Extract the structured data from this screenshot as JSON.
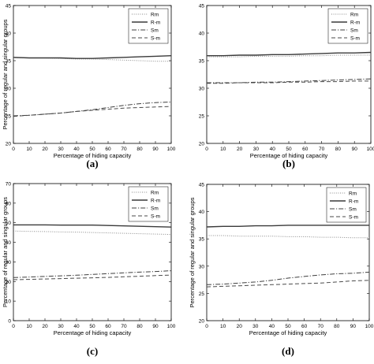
{
  "chart_data": [
    {
      "type": "line",
      "panel_label": "(a)",
      "xlabel": "Percentage of hiding capacity",
      "ylabel": "Percentage of regular and singular groups",
      "xlim": [
        0,
        100
      ],
      "ylim": [
        20,
        45
      ],
      "xticks": [
        "0",
        "10",
        "20",
        "30",
        "40",
        "50",
        "60",
        "70",
        "80",
        "90",
        "100"
      ],
      "yticks": [
        "20",
        "25",
        "30",
        "35",
        "40",
        "45"
      ],
      "legend": "top-right",
      "x": [
        0,
        10,
        20,
        30,
        40,
        50,
        60,
        70,
        80,
        90,
        100
      ],
      "series": [
        {
          "name": "Rm",
          "style": "dotted",
          "values": [
            35.5,
            35.5,
            35.5,
            35.4,
            35.3,
            35.3,
            35.2,
            35.1,
            35.0,
            34.9,
            34.9
          ]
        },
        {
          "name": "R-m",
          "style": "solid",
          "values": [
            35.6,
            35.5,
            35.5,
            35.5,
            35.4,
            35.4,
            35.5,
            35.6,
            35.7,
            35.8,
            35.9
          ]
        },
        {
          "name": "Sm",
          "style": "dashdot",
          "values": [
            25.0,
            25.1,
            25.3,
            25.5,
            25.8,
            26.1,
            26.5,
            26.9,
            27.2,
            27.4,
            27.5
          ]
        },
        {
          "name": "S-m",
          "style": "dashed",
          "values": [
            24.9,
            25.1,
            25.3,
            25.5,
            25.8,
            26.0,
            26.2,
            26.4,
            26.5,
            26.6,
            26.7
          ]
        }
      ]
    },
    {
      "type": "line",
      "panel_label": "(b)",
      "xlabel": "Percentage of hiding capacity",
      "ylabel": "",
      "xlim": [
        0,
        100
      ],
      "ylim": [
        20,
        45
      ],
      "xticks": [
        "0",
        "10",
        "20",
        "30",
        "40",
        "50",
        "60",
        "70",
        "80",
        "90",
        "100"
      ],
      "yticks": [
        "20",
        "25",
        "30",
        "35",
        "40",
        "45"
      ],
      "legend": "top-right",
      "x": [
        0,
        10,
        20,
        30,
        40,
        50,
        60,
        70,
        80,
        90,
        100
      ],
      "series": [
        {
          "name": "Rm",
          "style": "dotted",
          "values": [
            35.7,
            35.7,
            35.7,
            35.8,
            35.8,
            35.8,
            35.9,
            35.9,
            36.0,
            36.0,
            36.0
          ]
        },
        {
          "name": "R-m",
          "style": "solid",
          "values": [
            35.9,
            35.9,
            36.0,
            36.0,
            36.1,
            36.1,
            36.2,
            36.3,
            36.4,
            36.4,
            36.5
          ]
        },
        {
          "name": "Sm",
          "style": "dashdot",
          "values": [
            31.0,
            31.0,
            31.0,
            31.1,
            31.1,
            31.2,
            31.3,
            31.4,
            31.5,
            31.6,
            31.7
          ]
        },
        {
          "name": "S-m",
          "style": "dashed",
          "values": [
            30.9,
            30.9,
            31.0,
            31.0,
            31.0,
            31.1,
            31.1,
            31.2,
            31.2,
            31.3,
            31.3
          ]
        }
      ]
    },
    {
      "type": "line",
      "panel_label": "(c)",
      "xlabel": "Percentage of hiding capacity",
      "ylabel": "Percentage of regular and singular groups",
      "xlim": [
        0,
        100
      ],
      "ylim": [
        0,
        70
      ],
      "xticks": [
        "0",
        "10",
        "20",
        "30",
        "40",
        "50",
        "60",
        "70",
        "80",
        "90",
        "100"
      ],
      "yticks": [
        "0",
        "10",
        "20",
        "30",
        "40",
        "50",
        "60",
        "70"
      ],
      "legend": "top-right",
      "x": [
        0,
        10,
        20,
        30,
        40,
        50,
        60,
        70,
        80,
        90,
        100
      ],
      "series": [
        {
          "name": "Rm",
          "style": "dotted",
          "values": [
            45.8,
            45.6,
            45.5,
            45.3,
            45.2,
            45.0,
            44.8,
            44.6,
            44.4,
            44.2,
            44.0
          ]
        },
        {
          "name": "R-m",
          "style": "solid",
          "values": [
            48.9,
            48.9,
            48.9,
            48.8,
            48.8,
            48.8,
            48.6,
            48.4,
            48.2,
            48.0,
            47.8
          ]
        },
        {
          "name": "Sm",
          "style": "dashdot",
          "values": [
            22.0,
            22.3,
            22.6,
            22.9,
            23.2,
            23.6,
            24.0,
            24.4,
            24.8,
            25.1,
            25.5
          ]
        },
        {
          "name": "S-m",
          "style": "dashed",
          "values": [
            20.9,
            21.1,
            21.3,
            21.5,
            21.7,
            21.9,
            22.1,
            22.4,
            22.7,
            23.0,
            23.3
          ]
        }
      ]
    },
    {
      "type": "line",
      "panel_label": "(d)",
      "xlabel": "Percentage of hiding capacity",
      "ylabel": "Percentage of regular and singular groups",
      "xlim": [
        0,
        100
      ],
      "ylim": [
        20,
        45
      ],
      "xticks": [
        "0",
        "10",
        "20",
        "30",
        "40",
        "50",
        "60",
        "70",
        "80",
        "90",
        "100"
      ],
      "yticks": [
        "20",
        "25",
        "30",
        "35",
        "40",
        "45"
      ],
      "legend": "top-right",
      "x": [
        0,
        10,
        20,
        30,
        40,
        50,
        60,
        70,
        80,
        90,
        100
      ],
      "series": [
        {
          "name": "Rm",
          "style": "dotted",
          "values": [
            35.6,
            35.6,
            35.5,
            35.5,
            35.5,
            35.4,
            35.4,
            35.3,
            35.3,
            35.2,
            35.2
          ]
        },
        {
          "name": "R-m",
          "style": "solid",
          "values": [
            37.2,
            37.3,
            37.3,
            37.4,
            37.4,
            37.5,
            37.5,
            37.5,
            37.5,
            37.5,
            37.5
          ]
        },
        {
          "name": "Sm",
          "style": "dashdot",
          "values": [
            26.6,
            26.7,
            26.9,
            27.1,
            27.4,
            27.8,
            28.1,
            28.4,
            28.6,
            28.7,
            28.9
          ]
        },
        {
          "name": "S-m",
          "style": "dashed",
          "values": [
            26.2,
            26.3,
            26.4,
            26.5,
            26.6,
            26.7,
            26.8,
            26.9,
            27.1,
            27.3,
            27.4
          ]
        }
      ]
    }
  ]
}
